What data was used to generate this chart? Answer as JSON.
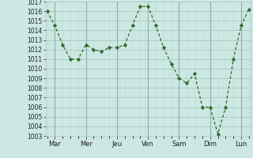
{
  "x_values": [
    0,
    0.5,
    1,
    1.5,
    2,
    2.5,
    3,
    3.5,
    4,
    4.5,
    5,
    5.5,
    6,
    6.5,
    7,
    7.5,
    8,
    8.5,
    9,
    9.5,
    10,
    10.5,
    11,
    11.5,
    12,
    12.5,
    13
  ],
  "y_values": [
    1016,
    1014.5,
    1012.5,
    1011,
    1011,
    1012.5,
    1012,
    1011.8,
    1012.2,
    1012.2,
    1012.5,
    1014.5,
    1016.5,
    1016.5,
    1014.5,
    1012.2,
    1010.5,
    1009,
    1008.5,
    1009.5,
    1006,
    1006,
    1003.2,
    1006,
    1011,
    1014.5,
    1016.2
  ],
  "day_labels": [
    "Mar",
    "Mer",
    "Jeu",
    "Ven",
    "Sam",
    "Dim",
    "Lun"
  ],
  "day_positions": [
    0.5,
    2.5,
    4.5,
    6.5,
    8.5,
    10.5,
    12.5
  ],
  "line_color": "#2d6a2d",
  "marker_color": "#2d6a2d",
  "bg_color": "#cde8e3",
  "grid_major_color": "#a8c8c2",
  "grid_minor_color": "#b8d8d2",
  "tick_label_color": "#222222",
  "ylim": [
    1003,
    1017
  ],
  "yticks": [
    1003,
    1004,
    1005,
    1006,
    1007,
    1008,
    1009,
    1010,
    1011,
    1012,
    1013,
    1014,
    1015,
    1016,
    1017
  ],
  "xlim": [
    -0.1,
    13.1
  ]
}
